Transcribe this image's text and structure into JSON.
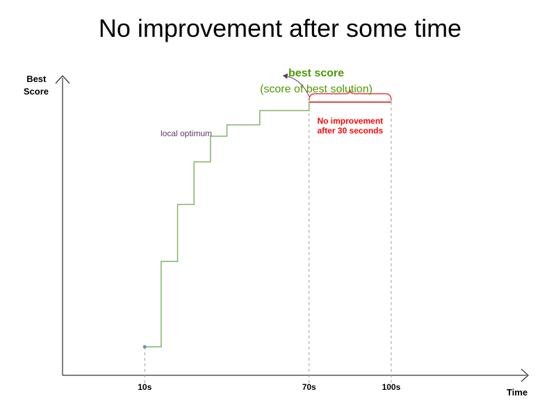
{
  "title": "No improvement after some time",
  "colors": {
    "score_line": "#82b366",
    "legend_text": "#4d9900",
    "red_annotation": "#ff0000",
    "bracket": "#e0181f",
    "purple_annotation": "#663366",
    "guide_line": "#999999",
    "start_point": "#6c8ebf",
    "axis": "#000000"
  },
  "chart_data": {
    "type": "line",
    "step": true,
    "y_axis_label": "Best Score",
    "x_axis_label": "Time",
    "x_ticks": [
      {
        "value": 10,
        "label": "10s"
      },
      {
        "value": 70,
        "label": "70s"
      },
      {
        "value": 100,
        "label": "100s"
      }
    ],
    "xlim": [
      -20,
      150
    ],
    "ylim": [
      0,
      10.5
    ],
    "grid": false,
    "series": [
      {
        "name": "best score",
        "description": "(score of best solution)",
        "points": [
          [
            10,
            1.0
          ],
          [
            16,
            1.0
          ],
          [
            16,
            4.0
          ],
          [
            22,
            4.0
          ],
          [
            22,
            6.0
          ],
          [
            28,
            6.0
          ],
          [
            28,
            7.5
          ],
          [
            34,
            7.5
          ],
          [
            34,
            8.4
          ],
          [
            40,
            8.4
          ],
          [
            40,
            8.8
          ],
          [
            52,
            8.8
          ],
          [
            52,
            9.3
          ],
          [
            70,
            9.3
          ],
          [
            70,
            9.6
          ],
          [
            100,
            9.6
          ]
        ]
      }
    ],
    "annotations": {
      "local_optimum": {
        "label": "local optimum",
        "x": 70,
        "y": 9.6
      },
      "no_improvement": {
        "lines": [
          "No improvement",
          "after 30 seconds"
        ],
        "x_start": 70,
        "x_end": 100
      }
    }
  }
}
